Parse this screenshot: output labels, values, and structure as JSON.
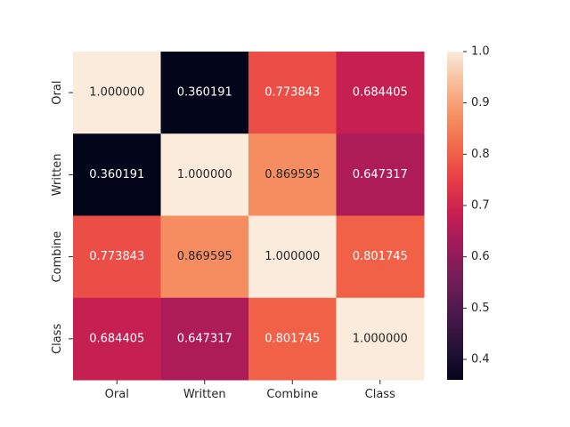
{
  "chart_data": {
    "type": "heatmap",
    "title": "",
    "xlabel": "",
    "ylabel": "",
    "x_categories": [
      "Oral",
      "Written",
      "Combine",
      "Class"
    ],
    "y_categories": [
      "Oral",
      "Written",
      "Combine",
      "Class"
    ],
    "values": [
      [
        1.0,
        0.360191,
        0.773843,
        0.684405
      ],
      [
        0.360191,
        1.0,
        0.869595,
        0.647317
      ],
      [
        0.773843,
        0.869595,
        1.0,
        0.801745
      ],
      [
        0.684405,
        0.647317,
        0.801745,
        1.0
      ]
    ],
    "value_labels": [
      [
        "1.000000",
        "0.360191",
        "0.773843",
        "0.684405"
      ],
      [
        "0.360191",
        "1.000000",
        "0.869595",
        "0.647317"
      ],
      [
        "0.773843",
        "0.869595",
        "1.000000",
        "0.801745"
      ],
      [
        "0.684405",
        "0.647317",
        "0.801745",
        "1.000000"
      ]
    ],
    "colorbar": {
      "range": [
        0.360191,
        1.0
      ],
      "tick_values": [
        0.4,
        0.5,
        0.6,
        0.7,
        0.8,
        0.9,
        1.0
      ],
      "tick_labels": [
        "0.4",
        "0.5",
        "0.6",
        "0.7",
        "0.8",
        "0.9",
        "1.0"
      ]
    },
    "colormap": "rocket",
    "grid": false
  }
}
